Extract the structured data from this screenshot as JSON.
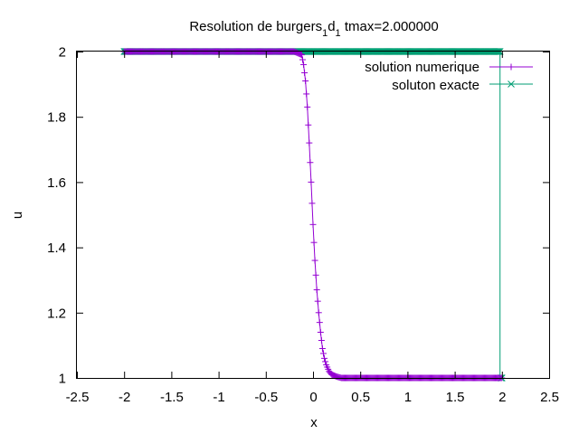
{
  "chart_data": {
    "type": "line",
    "title": {
      "prefix": "Resolution de burgers",
      "sub1": "1",
      "mid": "d",
      "sub2": "1",
      "suffix": " tmax=2.000000"
    },
    "xlabel": "x",
    "ylabel": "u",
    "xlim": [
      -2.5,
      2.5
    ],
    "ylim": [
      1,
      2
    ],
    "xticks": [
      "-2.5",
      "-2",
      "-1.5",
      "-1",
      "-0.5",
      "0",
      "0.5",
      "1",
      "1.5",
      "2",
      "2.5"
    ],
    "yticks": [
      "1",
      "1.2",
      "1.4",
      "1.6",
      "1.8",
      "2"
    ],
    "grid": false,
    "legend_position": "top-right",
    "series": [
      {
        "name": "solution numerique",
        "color": "#9400d3",
        "marker": "plus",
        "x_range": [
          -2,
          2
        ],
        "profile": [
          [
            -2.0,
            2.0
          ],
          [
            -0.5,
            2.0
          ],
          [
            -0.3,
            2.0
          ],
          [
            -0.2,
            2.0
          ],
          [
            -0.12,
            1.99
          ],
          [
            -0.1,
            1.96
          ],
          [
            -0.08,
            1.91
          ],
          [
            -0.06,
            1.83
          ],
          [
            -0.04,
            1.72
          ],
          [
            -0.02,
            1.6
          ],
          [
            0.0,
            1.47
          ],
          [
            0.02,
            1.36
          ],
          [
            0.04,
            1.27
          ],
          [
            0.06,
            1.2
          ],
          [
            0.08,
            1.14
          ],
          [
            0.1,
            1.09
          ],
          [
            0.12,
            1.06
          ],
          [
            0.14,
            1.04
          ],
          [
            0.17,
            1.02
          ],
          [
            0.2,
            1.01
          ],
          [
            0.25,
            1.004
          ],
          [
            0.3,
            1.0
          ],
          [
            2.0,
            1.0
          ]
        ]
      },
      {
        "name": "soluton exacte",
        "color": "#009e73",
        "marker": "cross",
        "x_range": [
          -2,
          2
        ],
        "profile": [
          [
            -2.0,
            2.0
          ],
          [
            1.98,
            2.0
          ],
          [
            1.98,
            1.0
          ],
          [
            2.0,
            1.0
          ]
        ]
      }
    ]
  }
}
